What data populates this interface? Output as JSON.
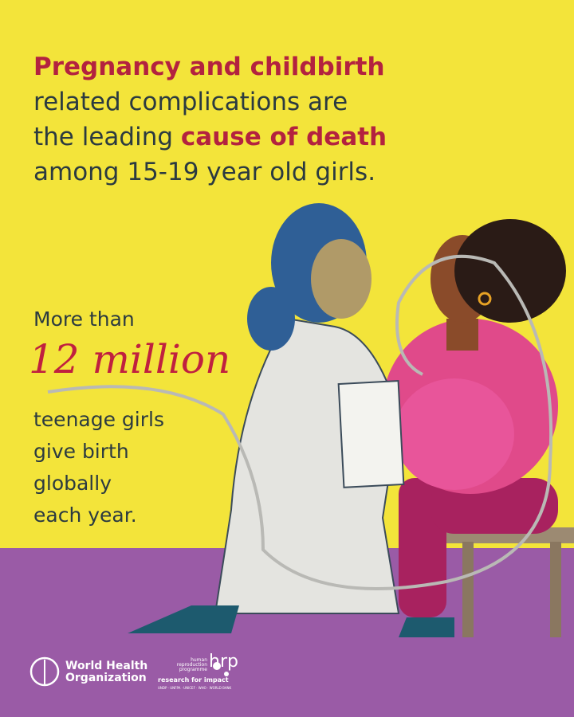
{
  "headline": {
    "line1": "Pregnancy and childbirth",
    "line2": "related complications are",
    "line3_start": "the leading",
    "line3_highlight": "cause of death",
    "line4": "among 15-19 year old girls."
  },
  "stat": {
    "intro": "More than",
    "figure": "12 million",
    "lines": [
      "teenage girls",
      "give birth",
      "globally",
      "each year."
    ]
  },
  "logos": {
    "who": {
      "line1": "World Health",
      "line2": "Organization"
    },
    "hrp": {
      "small_lines": [
        "human",
        "reproduction",
        "programme"
      ],
      "mark": "hrp",
      "tagline": "research for impact",
      "partners": "UNDP · UNFPA · UNICEF · WHO · WORLD BANK"
    }
  }
}
